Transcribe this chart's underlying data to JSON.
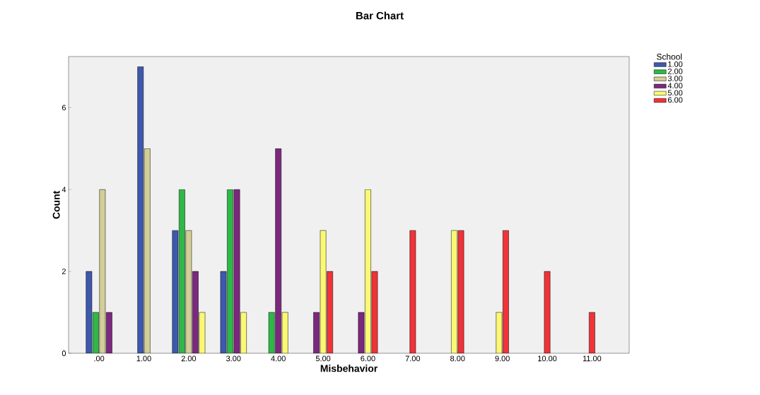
{
  "chart_data": {
    "type": "bar",
    "title": "Bar Chart",
    "xlabel": "Misbehavior",
    "ylabel": "Count",
    "legend_title": "School",
    "categories": [
      ".00",
      "1.00",
      "2.00",
      "3.00",
      "4.00",
      "5.00",
      "6.00",
      "7.00",
      "8.00",
      "9.00",
      "10.00",
      "11.00"
    ],
    "series": [
      {
        "name": "1.00",
        "color": "#3e58ac",
        "values": [
          2,
          7,
          3,
          2,
          null,
          null,
          null,
          null,
          null,
          null,
          null,
          null
        ]
      },
      {
        "name": "2.00",
        "color": "#2eb848",
        "values": [
          1,
          null,
          4,
          4,
          1,
          null,
          null,
          null,
          null,
          null,
          null,
          null
        ]
      },
      {
        "name": "3.00",
        "color": "#d3ce97",
        "values": [
          4,
          5,
          3,
          null,
          null,
          null,
          null,
          null,
          null,
          null,
          null,
          null
        ]
      },
      {
        "name": "4.00",
        "color": "#7c287d",
        "values": [
          1,
          null,
          2,
          4,
          5,
          1,
          1,
          null,
          null,
          null,
          null,
          null
        ]
      },
      {
        "name": "5.00",
        "color": "#fbf873",
        "values": [
          null,
          null,
          1,
          1,
          1,
          3,
          4,
          null,
          3,
          1,
          null,
          null
        ]
      },
      {
        "name": "6.00",
        "color": "#ef3338",
        "values": [
          null,
          null,
          null,
          null,
          null,
          2,
          2,
          3,
          3,
          3,
          2,
          1
        ]
      }
    ],
    "ylim": [
      0,
      7.25
    ],
    "yticks": [
      0,
      2,
      4,
      6
    ],
    "grid": false,
    "legend": "top right"
  }
}
